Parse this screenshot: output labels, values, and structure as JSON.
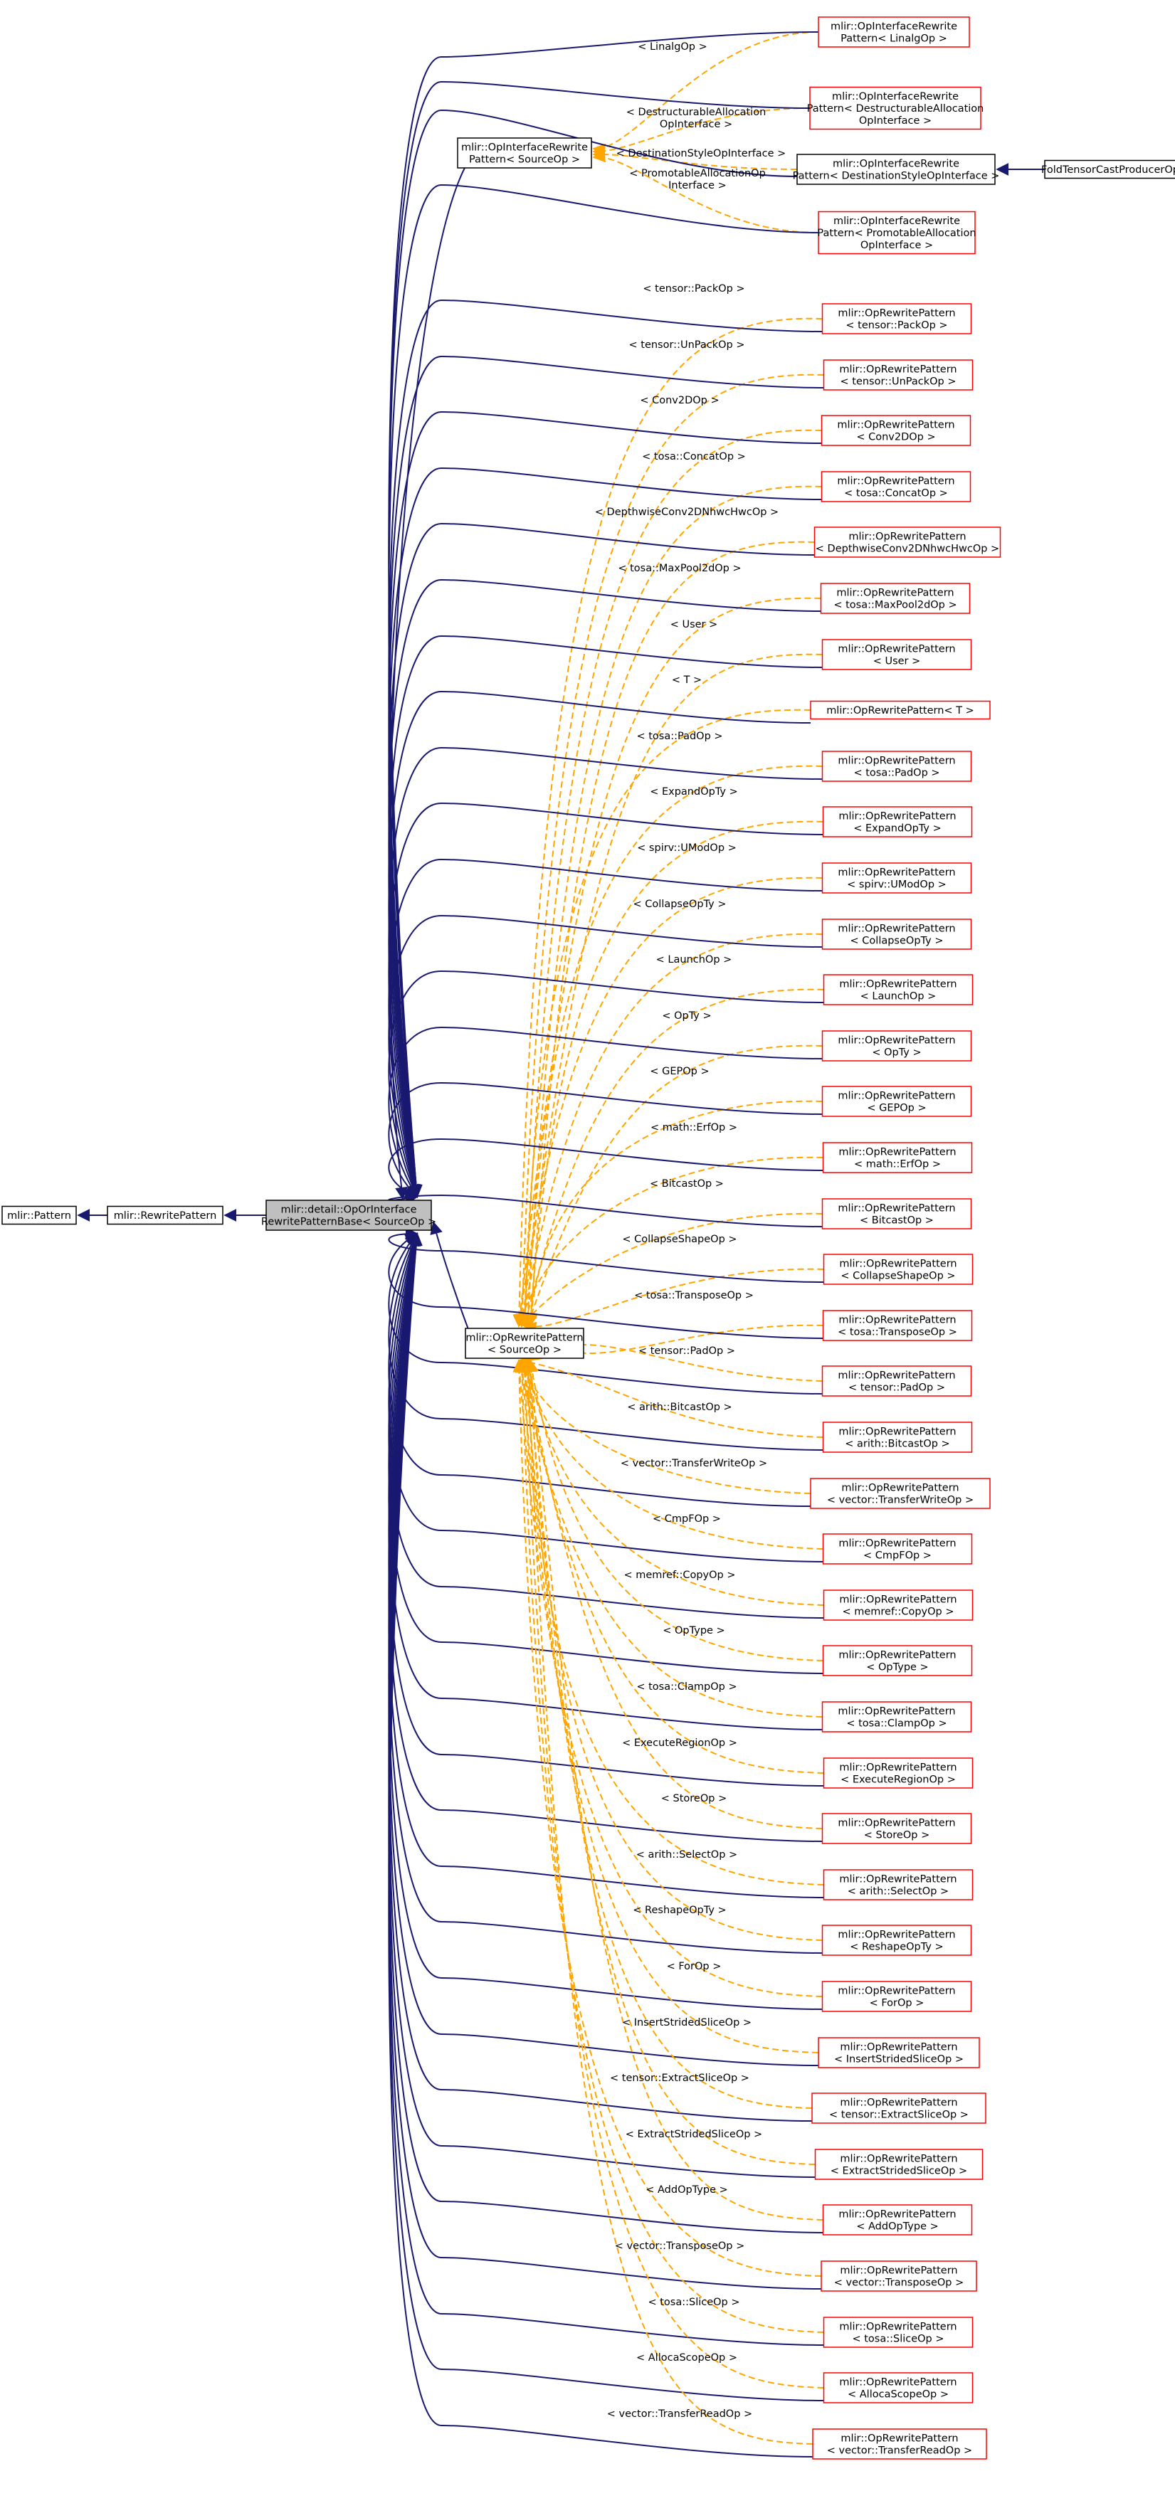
{
  "colors": {
    "inheritance_edge": "#191970",
    "template_edge": "#FFA500",
    "template_node_border": "#FF0000",
    "node_border": "#000000",
    "focus_fill": "#BFBFBF"
  },
  "core_nodes": {
    "pattern": "mlir::Pattern",
    "rewrite_pattern": "mlir::RewritePattern",
    "focus": [
      "mlir::detail::OpOrInterface",
      "RewritePatternBase< SourceOp >"
    ],
    "interface_template": [
      "mlir::OpInterfaceRewrite",
      "Pattern< SourceOp >"
    ],
    "op_template": [
      "mlir::OpRewritePattern",
      "< SourceOp >"
    ],
    "fold_node": "FoldTensorCastProducerOp"
  },
  "interface_instances": [
    {
      "label": [
        "mlir::OpInterfaceRewrite",
        "Pattern< LinalgOp >"
      ],
      "edge": [
        "< LinalgOp >"
      ]
    },
    {
      "label": [
        "mlir::OpInterfaceRewrite",
        "Pattern< DestructurableAllocation",
        "OpInterface >"
      ],
      "edge": [
        "< DestructurableAllocation",
        "OpInterface >"
      ]
    },
    {
      "label": [
        "mlir::OpInterfaceRewrite",
        "Pattern< DestinationStyleOpInterface >"
      ],
      "edge": [
        "< DestinationStyleOpInterface >"
      ]
    },
    {
      "label": [
        "mlir::OpInterfaceRewrite",
        "Pattern< PromotableAllocation",
        "OpInterface >"
      ],
      "edge": [
        "< PromotableAllocationOp",
        "Interface >"
      ]
    }
  ],
  "op_instances": [
    {
      "label": [
        "mlir::OpRewritePattern",
        "< tensor::PackOp >"
      ],
      "edge": "< tensor::PackOp >"
    },
    {
      "label": [
        "mlir::OpRewritePattern",
        "< tensor::UnPackOp >"
      ],
      "edge": "< tensor::UnPackOp >"
    },
    {
      "label": [
        "mlir::OpRewritePattern",
        "< Conv2DOp >"
      ],
      "edge": "< Conv2DOp >"
    },
    {
      "label": [
        "mlir::OpRewritePattern",
        "< tosa::ConcatOp >"
      ],
      "edge": "< tosa::ConcatOp >"
    },
    {
      "label": [
        "mlir::OpRewritePattern",
        "< DepthwiseConv2DNhwcHwcOp >"
      ],
      "edge": "< DepthwiseConv2DNhwcHwcOp >"
    },
    {
      "label": [
        "mlir::OpRewritePattern",
        "< tosa::MaxPool2dOp >"
      ],
      "edge": "< tosa::MaxPool2dOp >"
    },
    {
      "label": [
        "mlir::OpRewritePattern",
        "< User >"
      ],
      "edge": "< User >"
    },
    {
      "label": [
        "mlir::OpRewritePattern< T >"
      ],
      "edge": "< T >"
    },
    {
      "label": [
        "mlir::OpRewritePattern",
        "< tosa::PadOp >"
      ],
      "edge": "< tosa::PadOp >"
    },
    {
      "label": [
        "mlir::OpRewritePattern",
        "< ExpandOpTy >"
      ],
      "edge": "< ExpandOpTy >"
    },
    {
      "label": [
        "mlir::OpRewritePattern",
        "< spirv::UModOp >"
      ],
      "edge": "< spirv::UModOp >"
    },
    {
      "label": [
        "mlir::OpRewritePattern",
        "< CollapseOpTy >"
      ],
      "edge": "< CollapseOpTy >"
    },
    {
      "label": [
        "mlir::OpRewritePattern",
        "< LaunchOp >"
      ],
      "edge": "< LaunchOp >"
    },
    {
      "label": [
        "mlir::OpRewritePattern",
        "< OpTy >"
      ],
      "edge": "< OpTy >"
    },
    {
      "label": [
        "mlir::OpRewritePattern",
        "< GEPOp >"
      ],
      "edge": "< GEPOp >"
    },
    {
      "label": [
        "mlir::OpRewritePattern",
        "< math::ErfOp >"
      ],
      "edge": "< math::ErfOp >"
    },
    {
      "label": [
        "mlir::OpRewritePattern",
        "< BitcastOp >"
      ],
      "edge": "< BitcastOp >"
    },
    {
      "label": [
        "mlir::OpRewritePattern",
        "< CollapseShapeOp >"
      ],
      "edge": "< CollapseShapeOp >"
    },
    {
      "label": [
        "mlir::OpRewritePattern",
        "< tosa::TransposeOp >"
      ],
      "edge": "< tosa::TransposeOp >"
    },
    {
      "label": [
        "mlir::OpRewritePattern",
        "< tensor::PadOp >"
      ],
      "edge": "< tensor::PadOp >"
    },
    {
      "label": [
        "mlir::OpRewritePattern",
        "< arith::BitcastOp >"
      ],
      "edge": "< arith::BitcastOp >"
    },
    {
      "label": [
        "mlir::OpRewritePattern",
        "< vector::TransferWriteOp >"
      ],
      "edge": "< vector::TransferWriteOp >"
    },
    {
      "label": [
        "mlir::OpRewritePattern",
        "< CmpFOp >"
      ],
      "edge": "< CmpFOp >"
    },
    {
      "label": [
        "mlir::OpRewritePattern",
        "< memref::CopyOp >"
      ],
      "edge": "< memref::CopyOp >"
    },
    {
      "label": [
        "mlir::OpRewritePattern",
        "< OpType >"
      ],
      "edge": "< OpType >"
    },
    {
      "label": [
        "mlir::OpRewritePattern",
        "< tosa::ClampOp >"
      ],
      "edge": "< tosa::ClampOp >"
    },
    {
      "label": [
        "mlir::OpRewritePattern",
        "< ExecuteRegionOp >"
      ],
      "edge": "< ExecuteRegionOp >"
    },
    {
      "label": [
        "mlir::OpRewritePattern",
        "< StoreOp >"
      ],
      "edge": "< StoreOp >"
    },
    {
      "label": [
        "mlir::OpRewritePattern",
        "< arith::SelectOp >"
      ],
      "edge": "< arith::SelectOp >"
    },
    {
      "label": [
        "mlir::OpRewritePattern",
        "< ReshapeOpTy >"
      ],
      "edge": "< ReshapeOpTy >"
    },
    {
      "label": [
        "mlir::OpRewritePattern",
        "< ForOp >"
      ],
      "edge": "< ForOp >"
    },
    {
      "label": [
        "mlir::OpRewritePattern",
        "< InsertStridedSliceOp >"
      ],
      "edge": "< InsertStridedSliceOp >"
    },
    {
      "label": [
        "mlir::OpRewritePattern",
        "< tensor::ExtractSliceOp >"
      ],
      "edge": "< tensor::ExtractSliceOp >"
    },
    {
      "label": [
        "mlir::OpRewritePattern",
        "< ExtractStridedSliceOp >"
      ],
      "edge": "< ExtractStridedSliceOp >"
    },
    {
      "label": [
        "mlir::OpRewritePattern",
        "< AddOpType >"
      ],
      "edge": "< AddOpType >"
    },
    {
      "label": [
        "mlir::OpRewritePattern",
        "< vector::TransposeOp >"
      ],
      "edge": "< vector::TransposeOp >"
    },
    {
      "label": [
        "mlir::OpRewritePattern",
        "< tosa::SliceOp >"
      ],
      "edge": "< tosa::SliceOp >"
    },
    {
      "label": [
        "mlir::OpRewritePattern",
        "< AllocaScopeOp >"
      ],
      "edge": "< AllocaScopeOp >"
    },
    {
      "label": [
        "mlir::OpRewritePattern",
        "< vector::TransferReadOp >"
      ],
      "edge": "< vector::TransferReadOp >"
    }
  ]
}
